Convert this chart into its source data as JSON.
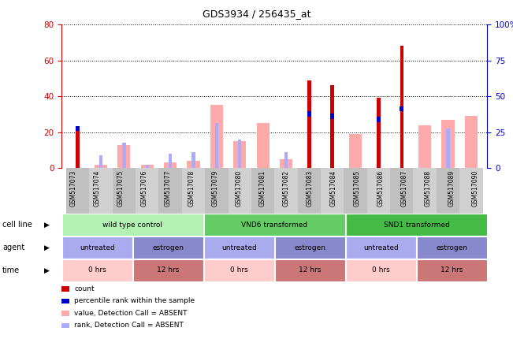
{
  "title": "GDS3934 / 256435_at",
  "samples": [
    "GSM517073",
    "GSM517074",
    "GSM517075",
    "GSM517076",
    "GSM517077",
    "GSM517078",
    "GSM517079",
    "GSM517080",
    "GSM517081",
    "GSM517082",
    "GSM517083",
    "GSM517084",
    "GSM517085",
    "GSM517086",
    "GSM517087",
    "GSM517088",
    "GSM517089",
    "GSM517090"
  ],
  "count_values": [
    22,
    0,
    0,
    0,
    0,
    0,
    0,
    0,
    0,
    0,
    49,
    46,
    0,
    39,
    68,
    0,
    0,
    0
  ],
  "rank_values": [
    22,
    0,
    0,
    0,
    0,
    0,
    0,
    0,
    0,
    0,
    30,
    29,
    0,
    27,
    33,
    0,
    0,
    0
  ],
  "absent_value_values": [
    0,
    2,
    13,
    2,
    3,
    4,
    35,
    15,
    25,
    5,
    0,
    0,
    19,
    0,
    0,
    24,
    27,
    29
  ],
  "absent_rank_values": [
    0,
    7,
    14,
    2,
    8,
    9,
    25,
    16,
    0,
    9,
    0,
    0,
    0,
    0,
    0,
    0,
    22,
    0
  ],
  "ylim_left": [
    0,
    80
  ],
  "ylim_right": [
    0,
    100
  ],
  "yticks_left": [
    0,
    20,
    40,
    60,
    80
  ],
  "yticks_right": [
    0,
    25,
    50,
    75,
    100
  ],
  "ytick_labels_right": [
    "0",
    "25",
    "50",
    "75",
    "100%"
  ],
  "ytick_labels_left": [
    "0",
    "20",
    "40",
    "60",
    "80"
  ],
  "color_count": "#cc0000",
  "color_rank": "#0000cc",
  "color_absent_value": "#ffaaaa",
  "color_absent_rank": "#aaaaff",
  "cell_line_groups": [
    {
      "label": "wild type control",
      "start": 0,
      "end": 6,
      "color": "#b3f0b3"
    },
    {
      "label": "VND6 transformed",
      "start": 6,
      "end": 12,
      "color": "#66cc66"
    },
    {
      "label": "SND1 transformed",
      "start": 12,
      "end": 18,
      "color": "#44bb44"
    }
  ],
  "agent_groups": [
    {
      "label": "untreated",
      "start": 0,
      "end": 3,
      "color": "#aaaaee"
    },
    {
      "label": "estrogen",
      "start": 3,
      "end": 6,
      "color": "#8888cc"
    },
    {
      "label": "untreated",
      "start": 6,
      "end": 9,
      "color": "#aaaaee"
    },
    {
      "label": "estrogen",
      "start": 9,
      "end": 12,
      "color": "#8888cc"
    },
    {
      "label": "untreated",
      "start": 12,
      "end": 15,
      "color": "#aaaaee"
    },
    {
      "label": "estrogen",
      "start": 15,
      "end": 18,
      "color": "#8888cc"
    }
  ],
  "time_groups": [
    {
      "label": "0 hrs",
      "start": 0,
      "end": 3,
      "color": "#ffcccc"
    },
    {
      "label": "12 hrs",
      "start": 3,
      "end": 6,
      "color": "#cc7777"
    },
    {
      "label": "0 hrs",
      "start": 6,
      "end": 9,
      "color": "#ffcccc"
    },
    {
      "label": "12 hrs",
      "start": 9,
      "end": 12,
      "color": "#cc7777"
    },
    {
      "label": "0 hrs",
      "start": 12,
      "end": 15,
      "color": "#ffcccc"
    },
    {
      "label": "12 hrs",
      "start": 15,
      "end": 18,
      "color": "#cc7777"
    }
  ],
  "row_labels": [
    "cell line",
    "agent",
    "time"
  ],
  "legend_items": [
    {
      "color": "#cc0000",
      "label": "count"
    },
    {
      "color": "#0000cc",
      "label": "percentile rank within the sample"
    },
    {
      "color": "#ffaaaa",
      "label": "value, Detection Call = ABSENT"
    },
    {
      "color": "#aaaaff",
      "label": "rank, Detection Call = ABSENT"
    }
  ]
}
